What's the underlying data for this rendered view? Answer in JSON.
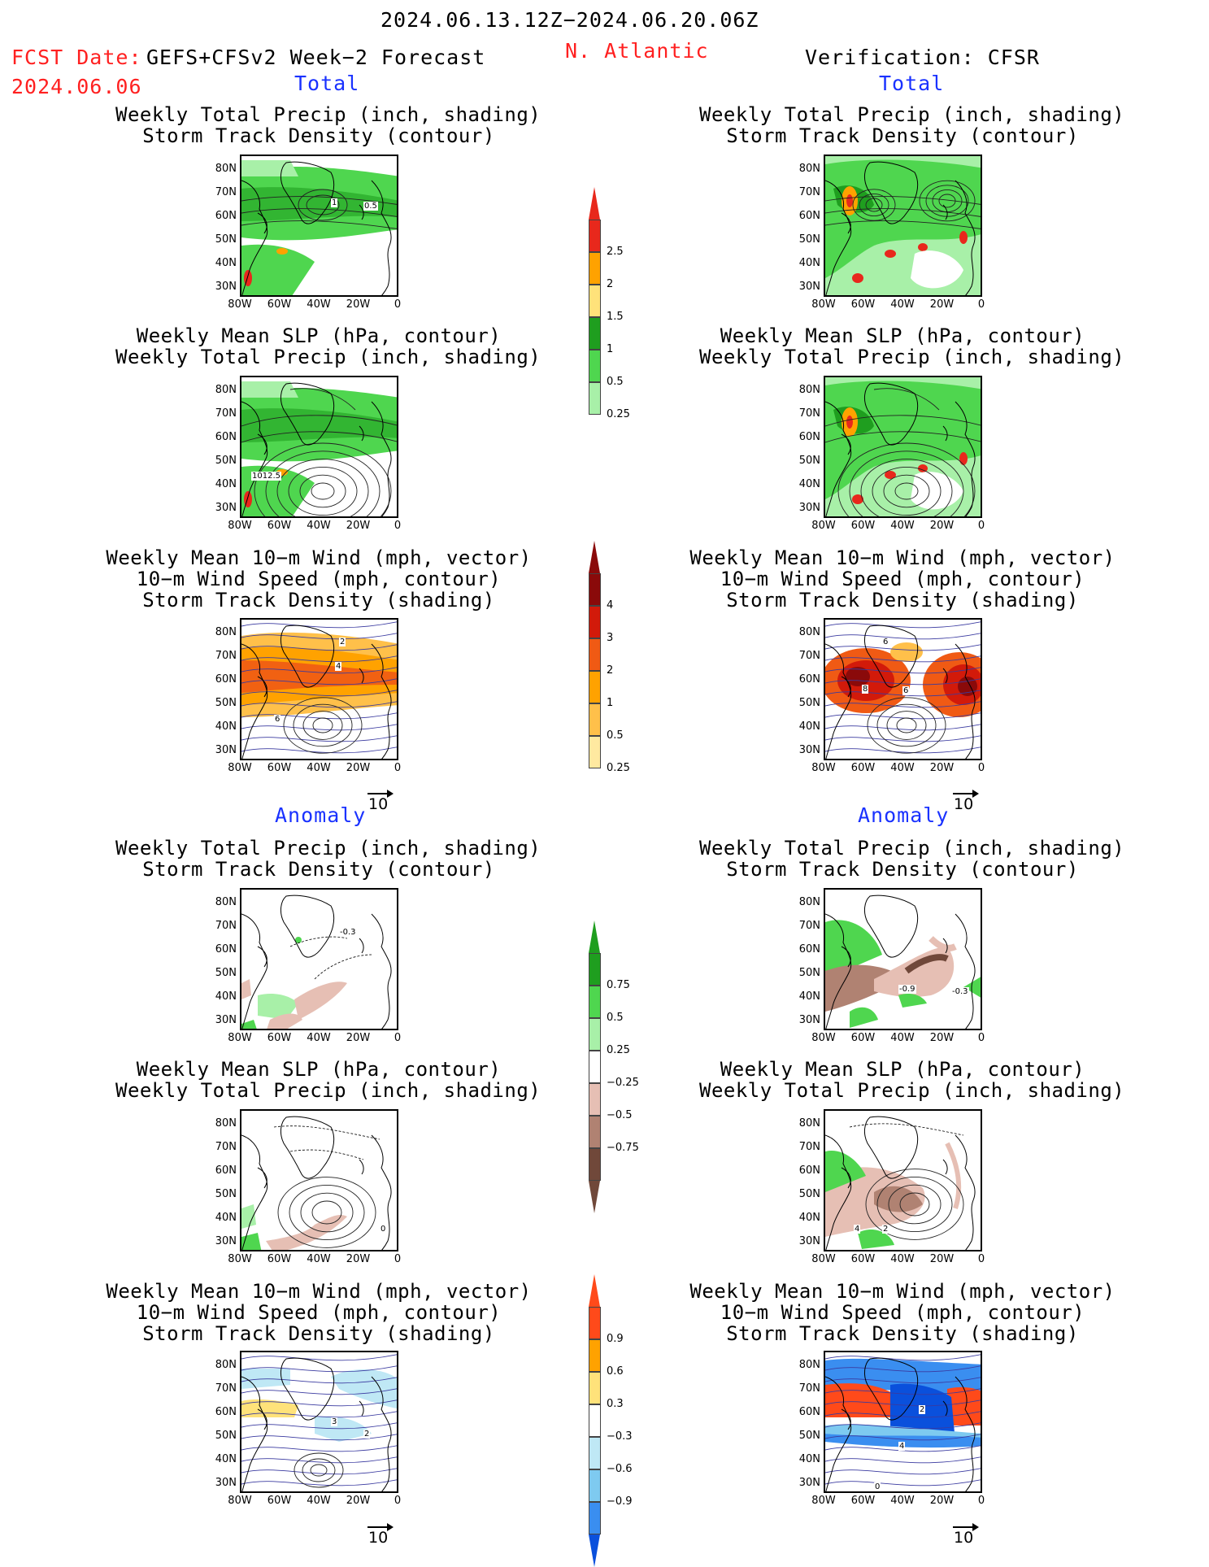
{
  "header": {
    "date_range": "2024.06.13.12Z−2024.06.20.06Z",
    "fcst_label": "FCST Date:",
    "fcst_model": "GEFS+CFSv2 Week−2 Forecast",
    "fcst_date": "2024.06.06",
    "region": "N. Atlantic",
    "verification": "Verification: CFSR"
  },
  "sections": {
    "total_label": "Total",
    "anomaly_label": "Anomaly"
  },
  "panel_titles": {
    "precip_storm": [
      "Weekly Total Precip (inch, shading)",
      "Storm Track Density (contour)"
    ],
    "slp_precip": [
      "Weekly Mean SLP (hPa, contour)",
      "Weekly Total Precip (inch, shading)"
    ],
    "wind_storm": [
      "Weekly Mean 10−m Wind (mph, vector)",
      "10−m Wind Speed (mph, contour)",
      "Storm Track Density (shading)"
    ]
  },
  "axes": {
    "lat_ticks": [
      "80N",
      "70N",
      "60N",
      "50N",
      "40N",
      "30N"
    ],
    "lon_ticks": [
      "80W",
      "60W",
      "40W",
      "20W",
      "0"
    ]
  },
  "contour_labels": {
    "fcst_precip_total": [
      "1",
      "0.5"
    ],
    "fcst_slp_total": [
      "1012.5"
    ],
    "fcst_wind_total": [
      "2",
      "4",
      "6"
    ],
    "cfsr_wind_total": [
      "6",
      "8",
      "6"
    ],
    "fcst_precip_anom": [
      "-0.3"
    ],
    "cfsr_precip_anom": [
      "-0.9",
      "-0.3"
    ],
    "fcst_slp_anom": [
      "0"
    ],
    "cfsr_slp_anom": [
      "4",
      "2"
    ],
    "fcst_wind_anom": [
      "3",
      "2"
    ],
    "cfsr_wind_anom": [
      "2",
      "4",
      "0"
    ]
  },
  "colorbars": {
    "precip_total": {
      "labels": [
        "2.5",
        "2",
        "1.5",
        "1",
        "0.5",
        "0.25"
      ],
      "colors": [
        "#e8281c",
        "#ffa200",
        "#ffe27a",
        "#1f9e1f",
        "#4fd64f",
        "#a8f0a8"
      ]
    },
    "storm_total": {
      "labels": [
        "4",
        "3",
        "2",
        "1",
        "0.5",
        "0.25"
      ],
      "colors": [
        "#8a0a0a",
        "#d21a0a",
        "#f05a14",
        "#ffa200",
        "#ffc04a",
        "#ffe9a0"
      ]
    },
    "precip_anom": {
      "labels": [
        "0.75",
        "0.5",
        "0.25",
        "−0.25",
        "−0.5",
        "−0.75"
      ],
      "colors_top": [
        "#1f9e1f",
        "#4fd64f",
        "#a8f0a8"
      ],
      "colors_bottom": [
        "#e6bfb4",
        "#b08272",
        "#70483a"
      ]
    },
    "storm_anom": {
      "labels": [
        "0.9",
        "0.6",
        "0.3",
        "−0.3",
        "−0.6",
        "−0.9"
      ],
      "colors_top": [
        "#ff4a1a",
        "#ffa200",
        "#ffe27a"
      ],
      "colors_bottom": [
        "#bfe8f5",
        "#7ecaf0",
        "#3a8ef0",
        "#0a50dc"
      ]
    }
  },
  "reference_vector": {
    "label": "10"
  }
}
